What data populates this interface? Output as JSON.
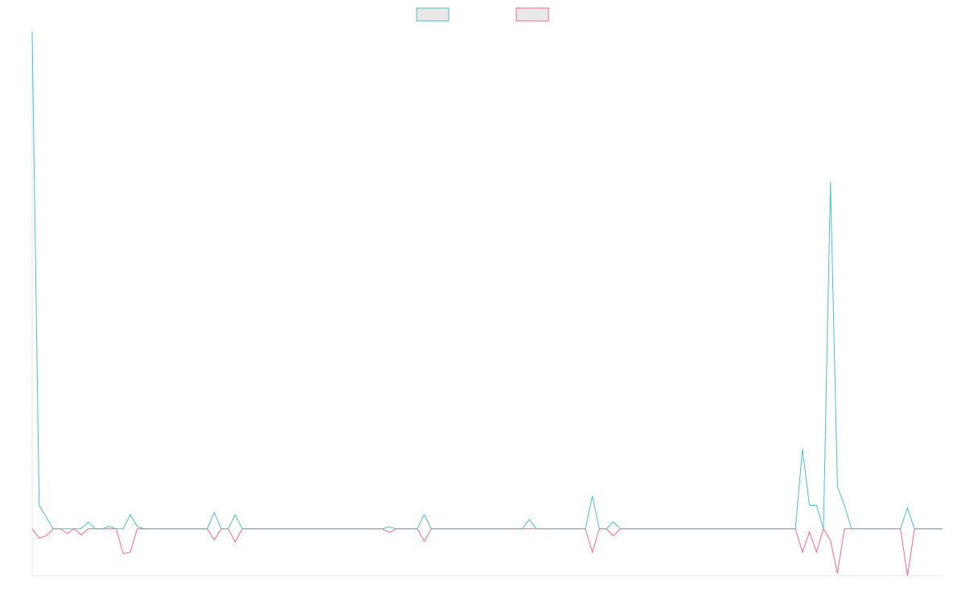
{
  "chart_data": {
    "type": "line",
    "title": "",
    "xlabel": "",
    "ylabel": "",
    "grid": false,
    "legend_position": "top-center",
    "x": [
      0,
      1,
      2,
      3,
      4,
      5,
      6,
      7,
      8,
      9,
      10,
      11,
      12,
      13,
      14,
      15,
      16,
      17,
      18,
      19,
      20,
      21,
      22,
      23,
      24,
      25,
      26,
      27,
      28,
      29,
      30,
      31,
      32,
      33,
      34,
      35,
      36,
      37,
      38,
      39,
      40,
      41,
      42,
      43,
      44,
      45,
      46,
      47,
      48,
      49,
      50,
      51,
      52,
      53,
      54,
      55,
      56,
      57,
      58,
      59,
      60,
      61,
      62,
      63,
      64,
      65,
      66,
      67,
      68,
      69,
      70,
      71,
      72,
      73,
      74,
      75,
      76,
      77,
      78,
      79,
      80,
      81,
      82,
      83,
      84,
      85,
      86,
      87,
      88,
      89,
      90,
      91,
      92,
      93,
      94,
      95,
      96,
      97,
      98,
      99,
      100,
      101,
      102,
      103,
      104,
      105,
      106,
      107,
      108,
      109,
      110,
      111,
      112,
      113,
      114,
      115,
      116,
      117,
      118,
      119,
      120,
      121,
      122,
      123,
      124,
      125,
      126,
      127,
      128,
      129,
      130
    ],
    "ylim": [
      -10,
      107
    ],
    "series": [
      {
        "name": "",
        "color": "#4bc0c0",
        "fill": "#e8e8e8",
        "values": [
          106,
          5,
          2.5,
          0,
          0,
          0,
          0,
          0,
          1.4,
          0,
          0,
          0.5,
          0,
          0,
          3,
          0.5,
          0,
          0,
          0,
          0,
          0,
          0,
          0,
          0,
          0,
          0,
          3.5,
          0,
          0,
          3,
          0,
          0,
          0,
          0,
          0,
          0,
          0,
          0,
          0,
          0,
          0,
          0,
          0,
          0,
          0,
          0,
          0,
          0,
          0,
          0,
          0,
          0.4,
          0,
          0,
          0,
          0,
          3,
          0,
          0,
          0,
          0,
          0,
          0,
          0,
          0,
          0,
          0,
          0,
          0,
          0,
          0,
          2,
          0,
          0,
          0,
          0,
          0,
          0,
          0,
          0,
          7,
          0,
          0,
          1.5,
          0,
          0,
          0,
          0,
          0,
          0,
          0,
          0,
          0,
          0,
          0,
          0,
          0,
          0,
          0,
          0,
          0,
          0,
          0,
          0,
          0,
          0,
          0,
          0,
          0,
          0,
          17,
          5,
          5,
          0,
          74,
          9,
          5,
          0,
          0,
          0,
          0,
          0,
          0,
          0,
          0,
          4.5,
          0,
          0,
          0,
          0,
          0
        ]
      },
      {
        "name": "",
        "color": "#ff6384",
        "fill": "#e8e8e8",
        "values": [
          0,
          -2,
          -1.5,
          0,
          0,
          -1,
          0,
          -1.3,
          0,
          0,
          0,
          0,
          0,
          -5.3,
          -5,
          0,
          0,
          0,
          0,
          0,
          0,
          0,
          0,
          0,
          0,
          0,
          -2.4,
          0,
          0,
          -2.8,
          0,
          0,
          0,
          0,
          0,
          0,
          0,
          0,
          0,
          0,
          0,
          0,
          0,
          0,
          0,
          0,
          0,
          0,
          0,
          0,
          0,
          -0.8,
          0,
          0,
          0,
          0,
          -2.7,
          0,
          0,
          0,
          0,
          0,
          0,
          0,
          0,
          0,
          0,
          0,
          0,
          0,
          0,
          0,
          0,
          0,
          0,
          0,
          0,
          0,
          0,
          0,
          -5,
          0,
          0,
          -1.5,
          0,
          0,
          0,
          0,
          0,
          0,
          0,
          0,
          0,
          0,
          0,
          0,
          0,
          0,
          0,
          0,
          0,
          0,
          0,
          0,
          0,
          0,
          0,
          0,
          0,
          0,
          -5,
          -0.7,
          -5,
          0,
          -2.5,
          -9.5,
          0,
          0,
          0,
          0,
          0,
          0,
          0,
          0,
          0,
          -10,
          0,
          0,
          0,
          0,
          0
        ]
      }
    ]
  }
}
